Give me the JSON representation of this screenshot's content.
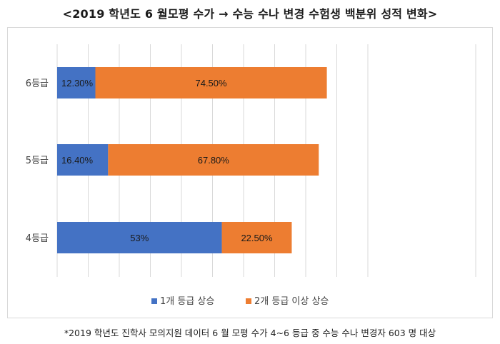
{
  "title": "<2019 학년도 6 월모평 수가 → 수능 수나 변경 수험생 백분위 성적 변화>",
  "footnote": "*2019 학년도 진학사 모의지원 데이터 6 월 모평 수가 4~6 등급 중 수능 수나 변경자 603 명 대상",
  "colors": {
    "series1": "#4472c4",
    "series2": "#ed7d31"
  },
  "chart_data": {
    "type": "bar",
    "orientation": "horizontal",
    "stacked": true,
    "categories": [
      "6등급",
      "5등급",
      "4등급"
    ],
    "series": [
      {
        "name": "1개 등급 상승",
        "values": [
          12.3,
          16.4,
          53
        ],
        "labels": [
          "12.30%",
          "16.40%",
          "53%"
        ]
      },
      {
        "name": "2개 등급 이상 상승",
        "values": [
          74.5,
          67.8,
          22.5
        ],
        "labels": [
          "74.50%",
          "67.80%",
          "22.50%"
        ]
      }
    ],
    "xlim": [
      0,
      100
    ],
    "grid": true,
    "legend_position": "bottom"
  }
}
